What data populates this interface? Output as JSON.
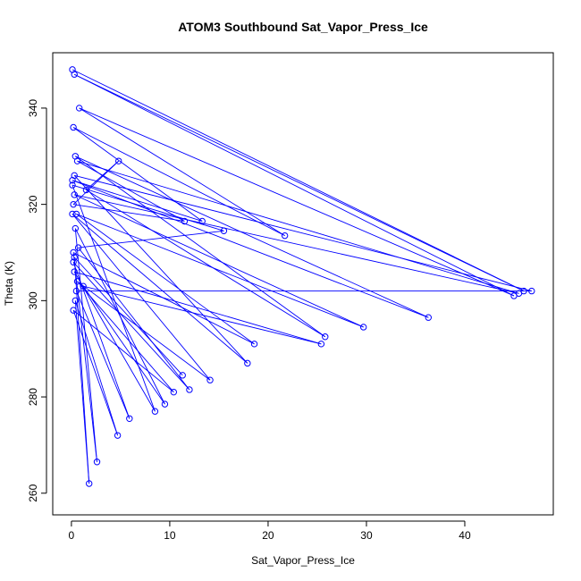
{
  "chart_data": {
    "type": "line",
    "title": "ATOM3 Southbound Sat_Vapor_Press_Ice",
    "xlabel": "Sat_Vapor_Press_Ice",
    "ylabel": "Theta (K)",
    "xlim": [
      -1.9,
      49
    ],
    "ylim": [
      255.5,
      351.5
    ],
    "xticks": [
      0,
      10,
      20,
      30,
      40
    ],
    "yticks": [
      260,
      280,
      300,
      320,
      340
    ],
    "marker": "open-circle",
    "color": "#0000ff",
    "series": [
      {
        "x": [
          0.1,
          46,
          0.3,
          45,
          0.8,
          21.7,
          0.2,
          13.3,
          0.1,
          36.3,
          0.4,
          25.8,
          1.5,
          4.8,
          0.2,
          11.5,
          0.6,
          45.5,
          0.3,
          29.7,
          0.5,
          18.6,
          0.2,
          2.6,
          0.4,
          9.5,
          1.2,
          25.4,
          0.3,
          8.5,
          0.1,
          15.5,
          0.7,
          12.0,
          0.2,
          5.9,
          0.5,
          46.8,
          0.3,
          17.9,
          0.1,
          14.1,
          0.6,
          10.4,
          0.2,
          4.7,
          0.4,
          1.8,
          0.3,
          11.3
        ],
        "y": [
          348,
          302,
          347,
          301,
          340,
          313.5,
          336,
          316.5,
          325,
          296.5,
          330,
          292.5,
          323,
          329,
          320,
          316.5,
          329,
          301.5,
          322,
          294.5,
          318,
          291,
          310,
          266.5,
          315,
          278.5,
          303,
          291,
          306,
          277,
          324,
          314.5,
          311,
          281.5,
          308,
          275.5,
          302,
          302,
          326,
          287,
          318,
          283.5,
          304,
          281,
          298,
          272,
          300,
          262,
          309,
          284.5
        ]
      }
    ]
  }
}
